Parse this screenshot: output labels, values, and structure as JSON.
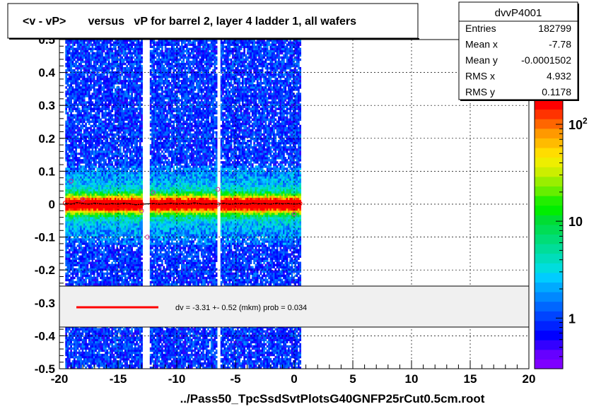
{
  "title": "<v - vP>       versus   vP for barrel 2, layer 4 ladder 1, all wafers",
  "footer": "../Pass50_TpcSsdSvtPlotsG40GNFP25rCut0.5cm.root",
  "stats": {
    "name": "dvvP4001",
    "rows": [
      {
        "label": "Entries",
        "value": "182799"
      },
      {
        "label": "Mean x",
        "value": "-7.78"
      },
      {
        "label": "Mean y",
        "value": "-0.0001502"
      },
      {
        "label": "RMS x",
        "value": "4.932"
      },
      {
        "label": "RMS y",
        "value": "0.1178"
      }
    ]
  },
  "fit_legend": {
    "text": "dv =   -3.31 +-  0.52 (mkm) prob = 0.034",
    "line_color": "#ff0000"
  },
  "colorbar": {
    "labels": [
      {
        "value": 1,
        "text": "1"
      },
      {
        "value": 10,
        "text": "10"
      },
      {
        "value": 100,
        "text": "10",
        "sup": "2"
      }
    ],
    "range": [
      0.3,
      180
    ],
    "palette": [
      "#7f00ff",
      "#6600ff",
      "#3300ff",
      "#0000ff",
      "#0022ff",
      "#0044ff",
      "#0066ff",
      "#0088ff",
      "#00aaff",
      "#00ccff",
      "#00dddd",
      "#00ddbb",
      "#00dd99",
      "#00dd77",
      "#00dd55",
      "#00dd33",
      "#00ee00",
      "#22ee00",
      "#66ee00",
      "#99ee00",
      "#ccee00",
      "#eeee00",
      "#ffdd00",
      "#ffbb00",
      "#ff9900",
      "#ff6600",
      "#ff3300",
      "#ff0000"
    ]
  },
  "chart_data": {
    "type": "heatmap",
    "title": "<v - vP>       versus   vP for barrel 2, layer 4 ladder 1, all wafers",
    "xlabel": "",
    "ylabel": "",
    "xlim": [
      -20,
      20
    ],
    "ylim": [
      -0.5,
      0.5
    ],
    "x_ticks": [
      -20,
      -15,
      -10,
      -5,
      0,
      5,
      10,
      15,
      20
    ],
    "x_tick_labels": [
      "-20",
      "-15",
      "-10",
      "-5",
      "0",
      "5",
      "10",
      "15",
      "20"
    ],
    "y_ticks": [
      -0.5,
      -0.4,
      -0.3,
      -0.2,
      -0.1,
      0,
      0.1,
      0.2,
      0.3,
      0.4,
      0.5
    ],
    "y_tick_labels": [
      "-0.5",
      "-0.4",
      "-0.3",
      "-0.2",
      "-0.1",
      "0",
      "0.1",
      "0.2",
      "0.3",
      "0.4",
      "0.5"
    ],
    "grid": true,
    "z_scale": "log",
    "occupied_x_ranges": [
      [
        -19.5,
        -12.7
      ],
      [
        -12.3,
        0.5
      ]
    ],
    "empty_x_strips": [
      [
        -13.0,
        -12.7
      ],
      [
        -6.6,
        -6.3
      ]
    ],
    "profile": {
      "x": [
        -19.5,
        -19.0,
        -18.5,
        -18.0,
        -17.5,
        -17.0,
        -16.5,
        -16.0,
        -15.5,
        -15.0,
        -14.5,
        -14.0,
        -13.5,
        -13.0,
        -12.0,
        -11.5,
        -11.0,
        -10.5,
        -10.0,
        -9.5,
        -9.0,
        -8.5,
        -8.0,
        -7.5,
        -7.0,
        -6.5,
        -6.0,
        -5.5,
        -5.0,
        -4.5,
        -4.0,
        -3.5,
        -3.0,
        -2.5,
        -2.0,
        -1.5,
        -1.0,
        -0.5,
        0.0,
        0.5
      ],
      "y": [
        0.003,
        0.0,
        0.005,
        0.002,
        0.0,
        0.003,
        0.001,
        0.0,
        0.002,
        0.0,
        0.003,
        0.001,
        -0.002,
        0.0,
        0.002,
        0.0,
        0.001,
        0.003,
        0.0,
        0.002,
        0.0,
        0.004,
        0.001,
        0.0,
        0.002,
        0.0,
        0.003,
        0.0,
        0.001,
        0.002,
        0.0,
        0.003,
        0.001,
        0.002,
        0.0,
        0.003,
        0.001,
        0.002,
        0.0,
        0.002
      ],
      "marker_color": "#ff0000",
      "line_color": "#000000"
    },
    "outlier_points": [
      {
        "x": -19.0,
        "y": 0.07
      },
      {
        "x": -18.0,
        "y": 0.015
      },
      {
        "x": -13.0,
        "y": -0.02
      },
      {
        "x": -12.5,
        "y": -0.1
      },
      {
        "x": -12.0,
        "y": 0.035
      },
      {
        "x": -6.5,
        "y": 0.045
      },
      {
        "x": 0.0,
        "y": -0.03
      }
    ],
    "fit": {
      "value": -3.31,
      "error": 0.52,
      "unit": "mkm",
      "prob": 0.034
    }
  }
}
